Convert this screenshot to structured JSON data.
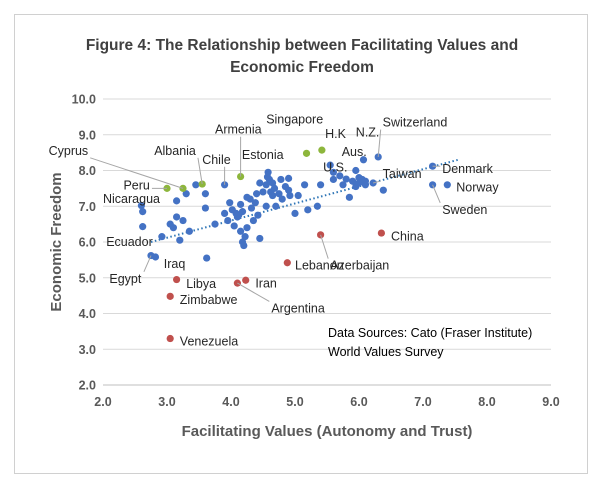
{
  "chart_data": {
    "type": "scatter",
    "title": [
      "Figure 4: The Relationship between Facilitating Values and",
      "Economic Freedom"
    ],
    "xlabel": "Facilitating Values (Autonomy and Trust)",
    "ylabel": "Economic  Freedom",
    "xlim": [
      2.0,
      9.0
    ],
    "ylim": [
      2.0,
      10.0
    ],
    "xticks": [
      "2.0",
      "3.0",
      "4.0",
      "5.0",
      "6.0",
      "7.0",
      "8.0",
      "9.0"
    ],
    "yticks": [
      "2.0",
      "3.0",
      "4.0",
      "5.0",
      "6.0",
      "7.0",
      "8.0",
      "9.0",
      "10.0"
    ],
    "grid": "horizontal",
    "trendline": {
      "style": "dotted",
      "x": [
        2.75,
        7.55
      ],
      "y": [
        6.0,
        8.3
      ]
    },
    "colors": {
      "blue": "#4472c4",
      "green": "#8db63c",
      "red": "#c0504d",
      "trend": "#2e75b6"
    },
    "labeled_points": [
      {
        "name": "Cyprus",
        "x": 3.25,
        "y": 7.5,
        "color": "green",
        "label_x": 1.15,
        "label_y": 8.55,
        "anchor": "start",
        "leader": true
      },
      {
        "name": "Albania",
        "x": 3.55,
        "y": 7.62,
        "color": "green",
        "label_x": 2.8,
        "label_y": 8.55,
        "anchor": "start",
        "leader": true
      },
      {
        "name": "Peru",
        "x": 3.0,
        "y": 7.5,
        "color": "green",
        "label_x": 2.32,
        "label_y": 7.58,
        "anchor": "start",
        "leader": true
      },
      {
        "name": "Chile",
        "x": 3.9,
        "y": 7.6,
        "color": "blue",
        "label_x": 3.55,
        "label_y": 8.3,
        "anchor": "start",
        "leader": true
      },
      {
        "name": "Armenia",
        "x": 4.15,
        "y": 7.83,
        "color": "green",
        "label_x": 3.75,
        "label_y": 9.14,
        "anchor": "start",
        "leader": true
      },
      {
        "name": "Singapore",
        "x": 5.18,
        "y": 8.48,
        "color": "green",
        "label_x": 4.55,
        "label_y": 9.42,
        "anchor": "start",
        "leader": false
      },
      {
        "name": "Estonia",
        "x": 4.57,
        "y": 7.82,
        "color": "blue",
        "label_x": 4.17,
        "label_y": 8.43,
        "anchor": "start",
        "leader": false
      },
      {
        "name": "H.K",
        "x": 5.42,
        "y": 8.57,
        "color": "green",
        "label_x": 5.47,
        "label_y": 9.02,
        "anchor": "start",
        "leader": false
      },
      {
        "name": "N.Z.",
        "x": 6.07,
        "y": 8.3,
        "color": "blue",
        "label_x": 5.95,
        "label_y": 9.06,
        "anchor": "start",
        "leader": false
      },
      {
        "name": "Switzerland",
        "x": 6.3,
        "y": 8.38,
        "color": "blue",
        "label_x": 6.37,
        "label_y": 9.34,
        "anchor": "start",
        "leader": true
      },
      {
        "name": "Aus.",
        "x": 5.95,
        "y": 8.0,
        "color": "blue",
        "label_x": 5.73,
        "label_y": 8.52,
        "anchor": "start",
        "leader": false
      },
      {
        "name": "U.S.",
        "x": 5.8,
        "y": 7.76,
        "color": "blue",
        "label_x": 5.44,
        "label_y": 8.08,
        "anchor": "start",
        "leader": false
      },
      {
        "name": "Taiwan",
        "x": 6.22,
        "y": 7.65,
        "color": "blue",
        "label_x": 6.37,
        "label_y": 7.9,
        "anchor": "start",
        "leader": true
      },
      {
        "name": "Denmark",
        "x": 7.15,
        "y": 8.12,
        "color": "blue",
        "label_x": 7.3,
        "label_y": 8.04,
        "anchor": "start",
        "leader": true
      },
      {
        "name": "Norway",
        "x": 7.38,
        "y": 7.6,
        "color": "blue",
        "label_x": 7.52,
        "label_y": 7.52,
        "anchor": "start",
        "leader": false
      },
      {
        "name": "Sweden",
        "x": 7.15,
        "y": 7.6,
        "color": "blue",
        "label_x": 7.3,
        "label_y": 6.9,
        "anchor": "start",
        "leader": true
      },
      {
        "name": "Nicaragua",
        "x": 2.6,
        "y": 7.02,
        "color": "blue",
        "label_x": 2.0,
        "label_y": 7.2,
        "anchor": "start",
        "leader": false
      },
      {
        "name": "Ecuador",
        "x": 2.62,
        "y": 6.43,
        "color": "blue",
        "label_x": 2.05,
        "label_y": 6.0,
        "anchor": "start",
        "leader": false
      },
      {
        "name": "Iraq",
        "x": 2.82,
        "y": 5.58,
        "color": "blue",
        "label_x": 2.95,
        "label_y": 5.38,
        "anchor": "start",
        "leader": false
      },
      {
        "name": "Egypt",
        "x": 2.75,
        "y": 5.62,
        "color": "blue",
        "label_x": 2.1,
        "label_y": 4.97,
        "anchor": "start",
        "leader": true
      },
      {
        "name": "Libya",
        "x": 3.15,
        "y": 4.95,
        "color": "red",
        "label_x": 3.3,
        "label_y": 4.82,
        "anchor": "start",
        "leader": false
      },
      {
        "name": "Zimbabwe",
        "x": 3.05,
        "y": 4.48,
        "color": "red",
        "label_x": 3.2,
        "label_y": 4.38,
        "anchor": "start",
        "leader": false
      },
      {
        "name": "Iran",
        "x": 4.23,
        "y": 4.93,
        "color": "red",
        "label_x": 4.38,
        "label_y": 4.84,
        "anchor": "start",
        "leader": false
      },
      {
        "name": "Argentina",
        "x": 4.1,
        "y": 4.85,
        "color": "red",
        "label_x": 4.63,
        "label_y": 4.14,
        "anchor": "start",
        "leader": true
      },
      {
        "name": "Lebanon",
        "x": 4.88,
        "y": 5.42,
        "color": "red",
        "label_x": 5.0,
        "label_y": 5.34,
        "anchor": "start",
        "leader": false
      },
      {
        "name": "Azerbaijan",
        "x": 5.4,
        "y": 6.2,
        "color": "red",
        "label_x": 5.55,
        "label_y": 5.34,
        "anchor": "start",
        "leader": true
      },
      {
        "name": "China",
        "x": 6.35,
        "y": 6.25,
        "color": "red",
        "label_x": 6.5,
        "label_y": 6.16,
        "anchor": "start",
        "leader": false
      },
      {
        "name": "Venezuela",
        "x": 3.05,
        "y": 3.3,
        "color": "red",
        "label_x": 3.2,
        "label_y": 3.22,
        "anchor": "start",
        "leader": false
      }
    ],
    "points": [
      [
        2.62,
        6.85
      ],
      [
        2.92,
        6.15
      ],
      [
        3.05,
        6.5
      ],
      [
        3.1,
        6.4
      ],
      [
        3.15,
        7.15
      ],
      [
        3.15,
        6.7
      ],
      [
        3.2,
        6.05
      ],
      [
        3.25,
        6.6
      ],
      [
        3.35,
        6.3
      ],
      [
        3.3,
        7.35
      ],
      [
        3.45,
        7.6
      ],
      [
        3.6,
        7.35
      ],
      [
        3.6,
        6.95
      ],
      [
        3.62,
        5.55
      ],
      [
        3.75,
        6.5
      ],
      [
        3.9,
        6.8
      ],
      [
        3.95,
        6.6
      ],
      [
        3.98,
        7.1
      ],
      [
        4.02,
        6.9
      ],
      [
        4.05,
        6.45
      ],
      [
        4.08,
        6.8
      ],
      [
        4.1,
        6.7
      ],
      [
        4.12,
        6.75
      ],
      [
        4.15,
        7.05
      ],
      [
        4.18,
        6.85
      ],
      [
        4.15,
        6.3
      ],
      [
        4.18,
        6.0
      ],
      [
        4.2,
        5.9
      ],
      [
        4.22,
        6.15
      ],
      [
        4.25,
        6.4
      ],
      [
        4.25,
        7.25
      ],
      [
        4.3,
        7.2
      ],
      [
        4.32,
        6.95
      ],
      [
        4.35,
        6.6
      ],
      [
        4.38,
        7.1
      ],
      [
        4.4,
        7.35
      ],
      [
        4.42,
        6.75
      ],
      [
        4.45,
        6.1
      ],
      [
        4.45,
        7.65
      ],
      [
        4.5,
        7.4
      ],
      [
        4.55,
        7.0
      ],
      [
        4.55,
        7.6
      ],
      [
        4.58,
        7.95
      ],
      [
        4.6,
        7.75
      ],
      [
        4.62,
        7.4
      ],
      [
        4.65,
        7.3
      ],
      [
        4.65,
        7.65
      ],
      [
        4.68,
        7.5
      ],
      [
        4.7,
        7.0
      ],
      [
        4.75,
        7.35
      ],
      [
        4.78,
        7.75
      ],
      [
        4.8,
        7.2
      ],
      [
        4.85,
        7.55
      ],
      [
        4.9,
        7.78
      ],
      [
        4.9,
        7.45
      ],
      [
        4.92,
        7.3
      ],
      [
        5.0,
        6.8
      ],
      [
        5.05,
        7.3
      ],
      [
        5.15,
        7.6
      ],
      [
        5.2,
        6.9
      ],
      [
        5.35,
        7.0
      ],
      [
        5.4,
        7.6
      ],
      [
        5.6,
        7.75
      ],
      [
        5.7,
        7.85
      ],
      [
        5.75,
        7.6
      ],
      [
        5.85,
        7.25
      ],
      [
        5.9,
        7.7
      ],
      [
        5.95,
        7.55
      ],
      [
        6.0,
        7.8
      ],
      [
        6.05,
        7.75
      ],
      [
        6.1,
        7.6
      ],
      [
        6.38,
        7.45
      ],
      [
        5.6,
        7.95
      ],
      [
        5.55,
        8.15
      ],
      [
        6.1,
        7.7
      ],
      [
        6.0,
        7.65
      ]
    ],
    "annotation": [
      "Data Sources:  Cato (Fraser Institute)",
      "World Values Survey"
    ]
  }
}
